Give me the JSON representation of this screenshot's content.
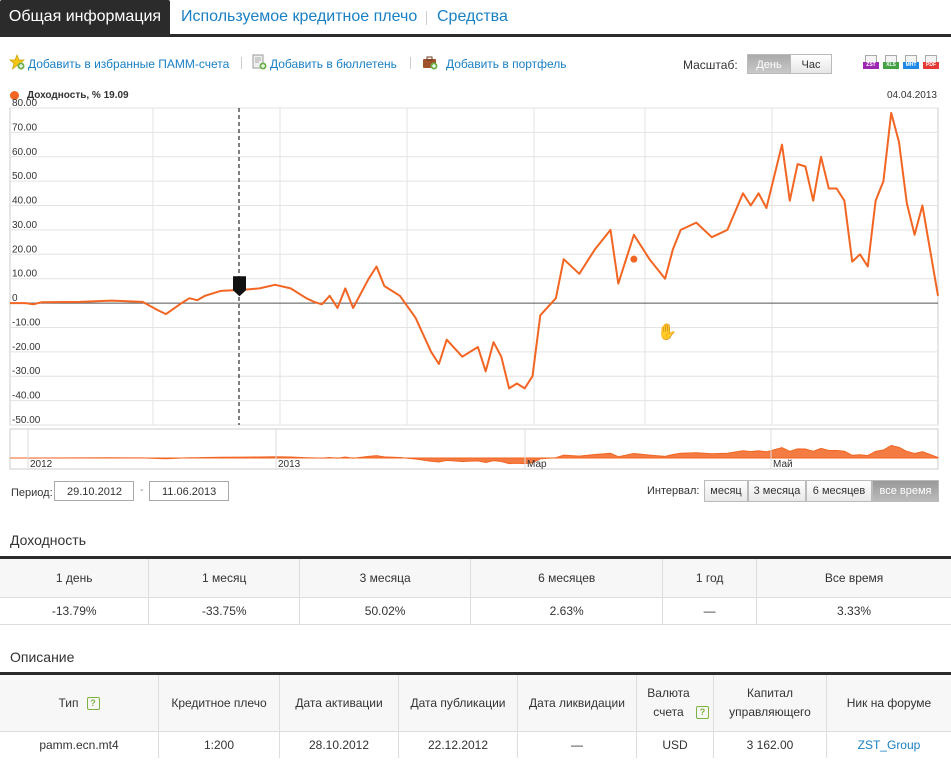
{
  "tabs": [
    {
      "label": "Общая информация",
      "active": true
    },
    {
      "label": "Используемое кредитное плечо",
      "active": false
    },
    {
      "label": "Средства",
      "active": false
    }
  ],
  "toolbar": {
    "add_favorites": "Добавить в избранные ПАММ-счета",
    "add_bulletin": "Добавить в бюллетень",
    "add_portfolio": "Добавить в портфель",
    "scale_label": "Масштаб:",
    "scale_day": "День",
    "scale_hour": "Час",
    "exports": [
      "ZST",
      "XLS",
      "MHT",
      "PDF"
    ],
    "export_colors": [
      "#9c27b0",
      "#43a047",
      "#1e88e5",
      "#e53935"
    ]
  },
  "colors": {
    "accent": "#f26522",
    "link": "#1a80c4",
    "dark": "#2b2b2b"
  },
  "chart_data": {
    "type": "line",
    "series": [
      {
        "name": "Доходность, %",
        "color": "#f26522",
        "values": [
          [
            0,
            0
          ],
          [
            2,
            0
          ],
          [
            3,
            -0.5
          ],
          [
            4,
            0.3
          ],
          [
            9,
            0.5
          ],
          [
            13,
            1
          ],
          [
            17,
            0.5
          ],
          [
            19,
            -3
          ],
          [
            20,
            -4.5
          ],
          [
            22,
            0
          ],
          [
            23,
            2
          ],
          [
            24,
            1.2
          ],
          [
            25,
            3
          ],
          [
            27,
            5
          ],
          [
            30,
            5.5
          ],
          [
            32,
            6
          ],
          [
            34,
            7.5
          ],
          [
            36,
            6
          ],
          [
            38,
            2
          ],
          [
            39,
            0.5
          ],
          [
            40,
            -0.5
          ],
          [
            41,
            3
          ],
          [
            42,
            -2
          ],
          [
            43,
            6
          ],
          [
            44,
            -2
          ],
          [
            46,
            10
          ],
          [
            47,
            15
          ],
          [
            48,
            7
          ],
          [
            50,
            3
          ],
          [
            52,
            -6
          ],
          [
            54,
            -20
          ],
          [
            55,
            -25
          ],
          [
            56,
            -15
          ],
          [
            58,
            -22
          ],
          [
            60,
            -18
          ],
          [
            61,
            -28
          ],
          [
            62,
            -16
          ],
          [
            63,
            -22
          ],
          [
            64,
            -35
          ],
          [
            65,
            -33
          ],
          [
            66,
            -35
          ],
          [
            67,
            -30
          ],
          [
            68,
            -5
          ],
          [
            70,
            2
          ],
          [
            71,
            18
          ],
          [
            73,
            12
          ],
          [
            75,
            22
          ],
          [
            77,
            30
          ],
          [
            78,
            8
          ],
          [
            80,
            28
          ],
          [
            82,
            18
          ],
          [
            84,
            10
          ],
          [
            85,
            22
          ],
          [
            86,
            30
          ],
          [
            88,
            33
          ],
          [
            90,
            27
          ],
          [
            92,
            30
          ],
          [
            94,
            45
          ],
          [
            95,
            40
          ],
          [
            96,
            45
          ],
          [
            97,
            39
          ],
          [
            99,
            65
          ],
          [
            100,
            42
          ],
          [
            101,
            57
          ],
          [
            102,
            56
          ],
          [
            103,
            42
          ],
          [
            104,
            60
          ],
          [
            105,
            47
          ],
          [
            106,
            47
          ],
          [
            107,
            42
          ],
          [
            108,
            17
          ],
          [
            109,
            20
          ],
          [
            110,
            15
          ],
          [
            111,
            42
          ],
          [
            112,
            50
          ],
          [
            113,
            78
          ],
          [
            114,
            66
          ],
          [
            115,
            41
          ],
          [
            116,
            28
          ],
          [
            117,
            40
          ],
          [
            119,
            3
          ]
        ]
      }
    ],
    "legend": "Доходность, % 19.09",
    "date_label": "04.04.2013",
    "x_range": [
      0,
      119
    ],
    "ylim": [
      -50,
      80
    ],
    "yticks": [
      80,
      70,
      60,
      50,
      40,
      30,
      20,
      10,
      0,
      -10,
      -20,
      -30,
      -40,
      -50
    ],
    "ytick_labels": [
      "80.00",
      "70.00",
      "60.00",
      "50.00",
      "40.00",
      "30.00",
      "20.00",
      "10.00",
      "0",
      "-10.00",
      "-20.00",
      "-30.00",
      "-40.00",
      "-50.00"
    ],
    "navigator_labels": [
      "2012",
      "2013",
      "Мар",
      "Май"
    ],
    "grid": true
  },
  "period": {
    "label": "Период:",
    "from": "29.10.2012",
    "to": "11.06.2013",
    "sep": "-"
  },
  "interval": {
    "label": "Интервал:",
    "options": [
      "месяц",
      "3 месяца",
      "6 месяцев",
      "все время"
    ],
    "active": 3
  },
  "returns": {
    "title": "Доходность",
    "headers": [
      "1 день",
      "1 месяц",
      "3 месяца",
      "6 месяцев",
      "1 год",
      "Все время"
    ],
    "values": [
      "-13.79%",
      "-33.75%",
      "50.02%",
      "2.63%",
      "—",
      "3.33%"
    ]
  },
  "description": {
    "title": "Описание",
    "headers": [
      "Тип",
      "Кредитное плечо",
      "Дата активации",
      "Дата публикации",
      "Дата ликвидации",
      "Валюта счета",
      "Капитал управляющего",
      "Ник на форуме"
    ],
    "values": [
      "pamm.ecn.mt4",
      "1:200",
      "28.10.2012",
      "22.12.2012",
      "—",
      "USD",
      "3 162.00",
      "ZST_Group"
    ],
    "help": "?"
  }
}
